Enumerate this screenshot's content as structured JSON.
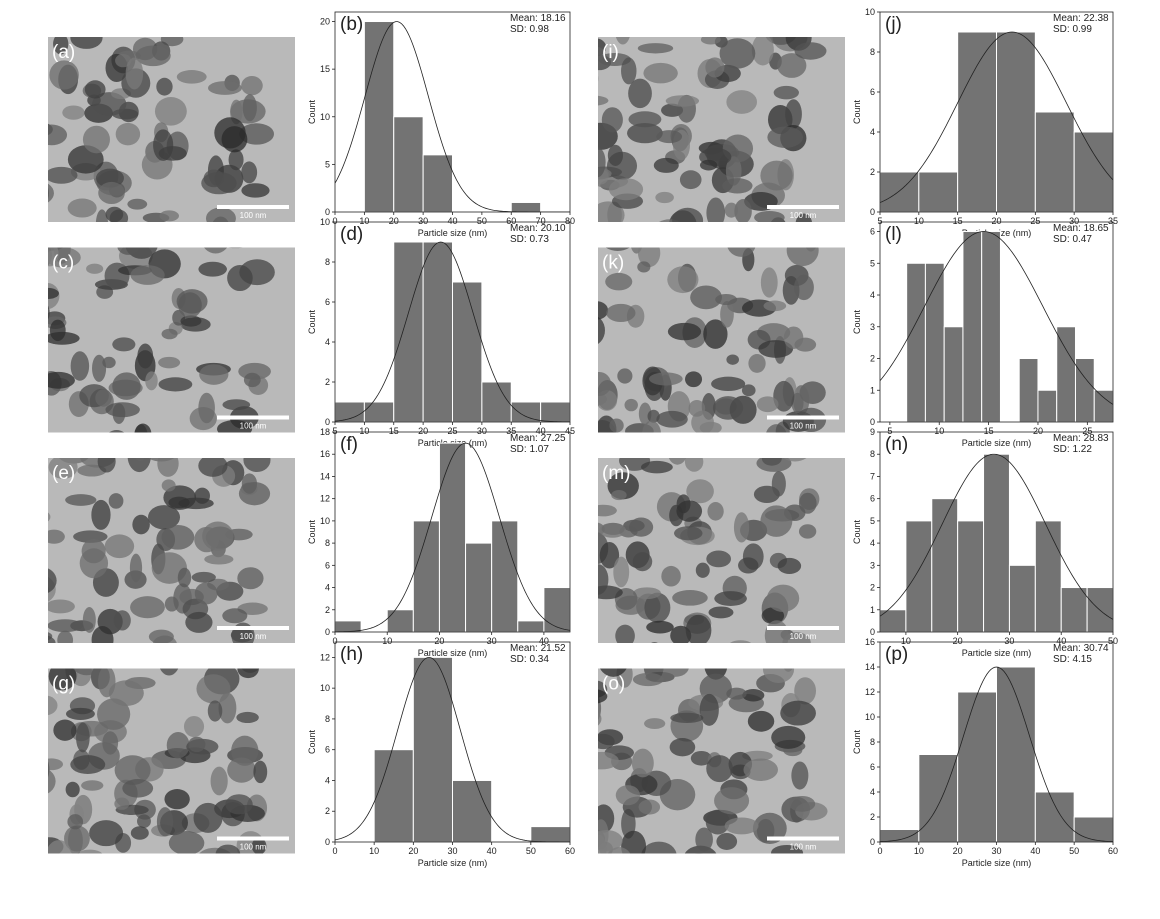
{
  "images": [
    {
      "label": "(a)",
      "scale_bar": "100 nm"
    },
    {
      "label": "(c)",
      "scale_bar": "100 nm"
    },
    {
      "label": "(e)",
      "scale_bar": "100 nm"
    },
    {
      "label": "(g)",
      "scale_bar": "100 nm"
    },
    {
      "label": "(i)",
      "scale_bar": "100 nm"
    },
    {
      "label": "(k)",
      "scale_bar": "100 nm"
    },
    {
      "label": "(m)",
      "scale_bar": "100 nm"
    },
    {
      "label": "(o)",
      "scale_bar": "100 nm"
    }
  ],
  "chart_data": [
    {
      "type": "histogram",
      "panel_label": "(b)",
      "annotations": [
        "Mean: 18.16",
        "SD: 0.98"
      ],
      "x_label": "Particle size (nm)",
      "y_label": "Count",
      "color": "#737373",
      "bins": [
        10,
        20,
        30,
        40,
        50,
        60,
        70
      ],
      "counts": [
        20,
        10,
        6,
        0,
        0,
        1
      ],
      "xlim": [
        0,
        80
      ],
      "xticks": [
        0,
        10,
        20,
        30,
        40,
        50,
        60,
        70,
        80
      ],
      "ylim": [
        0,
        21
      ],
      "yticks": [
        0,
        5,
        10,
        15,
        20
      ],
      "fit": {
        "center": 21,
        "sigma": 10.8,
        "amplitude": 20
      }
    },
    {
      "type": "histogram",
      "panel_label": "(d)",
      "annotations": [
        "Mean: 20.10",
        "SD: 0.73"
      ],
      "x_label": "Particle size (nm)",
      "y_label": "Count",
      "color": "#737373",
      "bins": [
        5,
        10,
        15,
        20,
        25,
        30,
        35,
        40,
        45
      ],
      "counts": [
        1,
        1,
        9,
        9,
        7,
        2,
        1,
        1
      ],
      "xlim": [
        5,
        45
      ],
      "xticks": [
        5,
        10,
        15,
        20,
        25,
        30,
        35,
        40,
        45
      ],
      "ylim": [
        0,
        10
      ],
      "yticks": [
        0,
        2,
        4,
        6,
        8,
        10
      ],
      "fit": {
        "center": 23,
        "sigma": 5.5,
        "amplitude": 9
      }
    },
    {
      "type": "histogram",
      "panel_label": "(f)",
      "annotations": [
        "Mean: 27.25",
        "SD: 1.07"
      ],
      "x_label": "Particle size (nm)",
      "y_label": "Count",
      "color": "#737373",
      "bins": [
        0,
        5,
        10,
        15,
        20,
        25,
        30,
        35,
        40,
        45
      ],
      "counts": [
        1,
        0,
        2,
        10,
        17,
        8,
        10,
        1,
        4
      ],
      "xlim": [
        0,
        45
      ],
      "xticks": [
        0,
        10,
        20,
        30,
        40
      ],
      "ylim": [
        0,
        18
      ],
      "yticks": [
        0,
        2,
        4,
        6,
        8,
        10,
        12,
        14,
        16,
        18
      ],
      "fit": {
        "center": 25,
        "sigma": 6.5,
        "amplitude": 17
      }
    },
    {
      "type": "histogram",
      "panel_label": "(h)",
      "annotations": [
        "Mean: 21.52",
        "SD: 0.34"
      ],
      "x_label": "Particle size (nm)",
      "y_label": "Count",
      "color": "#737373",
      "bins": [
        10,
        20,
        30,
        40,
        50,
        60
      ],
      "counts": [
        6,
        12,
        4,
        0,
        1
      ],
      "xlim": [
        0,
        60
      ],
      "xticks": [
        0,
        10,
        20,
        30,
        40,
        50,
        60
      ],
      "ylim": [
        0,
        13
      ],
      "yticks": [
        0,
        2,
        4,
        6,
        8,
        10,
        12
      ],
      "fit": {
        "center": 24,
        "sigma": 8,
        "amplitude": 12
      }
    },
    {
      "type": "histogram",
      "panel_label": "(j)",
      "annotations": [
        "Mean: 22.38",
        "SD: 0.99"
      ],
      "x_label": "Particle size (nm)",
      "y_label": "Count",
      "color": "#737373",
      "bins": [
        5,
        10,
        15,
        20,
        25,
        30,
        35
      ],
      "counts": [
        2,
        2,
        9,
        9,
        5,
        4
      ],
      "xlim": [
        5,
        35
      ],
      "xticks": [
        5,
        10,
        15,
        20,
        25,
        30,
        35
      ],
      "ylim": [
        0,
        10
      ],
      "yticks": [
        0,
        2,
        4,
        6,
        8,
        10
      ],
      "fit": {
        "center": 22,
        "sigma": 7,
        "amplitude": 9
      }
    },
    {
      "type": "histogram",
      "panel_label": "(l)",
      "annotations": [
        "Mean: 18.65",
        "SD: 0.47"
      ],
      "x_label": "Particle size (nm)",
      "y_label": "Count",
      "color": "#737373",
      "bins": [
        6.7,
        8.6,
        10.5,
        12.4,
        14.3,
        16.2,
        18.1,
        20,
        21.9,
        23.8,
        25.7,
        27.6
      ],
      "counts": [
        5,
        5,
        3,
        6,
        6,
        0,
        2,
        1,
        3,
        2,
        1
      ],
      "xlim": [
        4,
        27.6
      ],
      "xticks": [
        5,
        10,
        15,
        20,
        25
      ],
      "ylim": [
        0,
        6.3
      ],
      "yticks": [
        0,
        1,
        2,
        3,
        4,
        5,
        6
      ],
      "fit": {
        "center": 14.5,
        "sigma": 6,
        "amplitude": 6
      }
    },
    {
      "type": "histogram",
      "panel_label": "(n)",
      "annotations": [
        "Mean: 28.83",
        "SD: 1.22"
      ],
      "x_label": "Particle size (nm)",
      "y_label": "Count",
      "color": "#737373",
      "bins": [
        5,
        10,
        15,
        20,
        25,
        30,
        35,
        40,
        45,
        50
      ],
      "counts": [
        1,
        5,
        6,
        5,
        8,
        3,
        5,
        2,
        2
      ],
      "xlim": [
        5,
        50
      ],
      "xticks": [
        10,
        20,
        30,
        40,
        50
      ],
      "ylim": [
        0,
        9
      ],
      "yticks": [
        0,
        1,
        2,
        3,
        4,
        5,
        6,
        7,
        8,
        9
      ],
      "fit": {
        "center": 27,
        "sigma": 10,
        "amplitude": 8
      }
    },
    {
      "type": "histogram",
      "panel_label": "(p)",
      "annotations": [
        "Mean: 30.74",
        "SD: 4.15"
      ],
      "x_label": "Particle size (nm)",
      "y_label": "Count",
      "color": "#737373",
      "bins": [
        0,
        10,
        20,
        30,
        40,
        50,
        60
      ],
      "counts": [
        1,
        7,
        12,
        14,
        4,
        2
      ],
      "xlim": [
        0,
        60
      ],
      "xticks": [
        0,
        10,
        20,
        30,
        40,
        50,
        60
      ],
      "ylim": [
        0,
        16
      ],
      "yticks": [
        0,
        2,
        4,
        6,
        8,
        10,
        12,
        14,
        16
      ],
      "fit": {
        "center": 30,
        "sigma": 8.5,
        "amplitude": 14
      }
    }
  ]
}
